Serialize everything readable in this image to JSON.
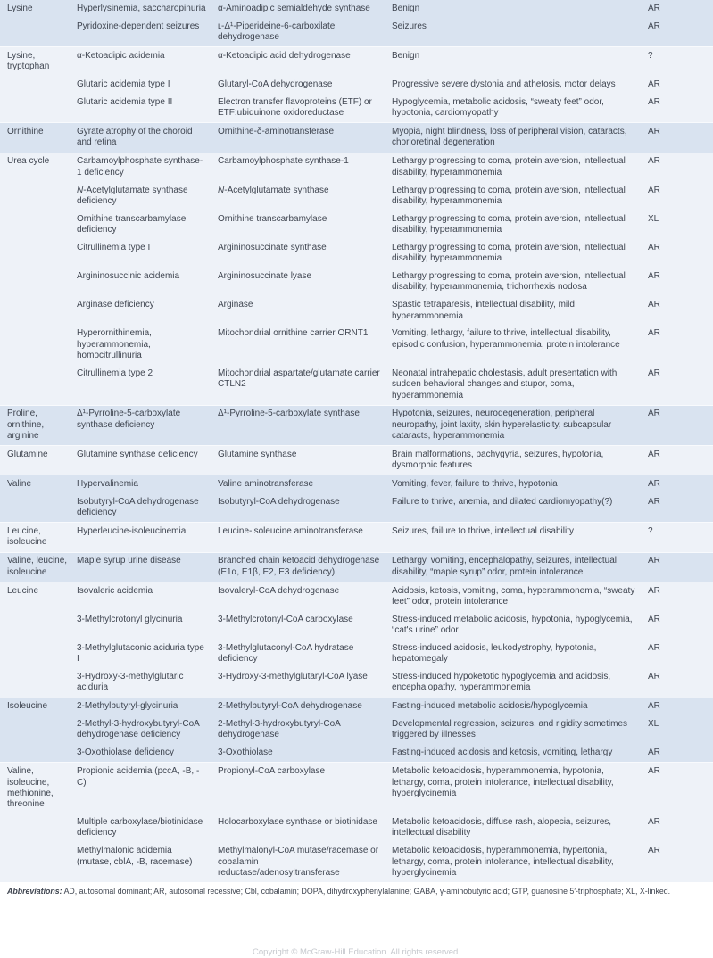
{
  "colors": {
    "stripe_blue": "#d9e3f0",
    "stripe_light": "#eef2f8",
    "text": "#3f4550",
    "page_background": "#ffffff"
  },
  "groups": [
    {
      "category": "Lysine",
      "rows": [
        {
          "disorder": "Hyperlysinemia, saccharopinuria",
          "enzyme": "α-Aminoadipic semialdehyde synthase",
          "clinical": "Benign",
          "inheritance": "AR"
        },
        {
          "disorder": "Pyridoxine-dependent seizures",
          "enzyme": "ʟ-Δ¹-Piperideine-6-carboxilate dehydrogenase",
          "clinical": "Seizures",
          "inheritance": "AR"
        }
      ]
    },
    {
      "category": "Lysine, tryptophan",
      "rows": [
        {
          "disorder": "α-Ketoadipic acidemia",
          "enzyme": "α-Ketoadipic acid dehydrogenase",
          "clinical": "Benign",
          "inheritance": "?"
        },
        {
          "disorder": "Glutaric acidemia type I",
          "enzyme": "Glutaryl-CoA dehydrogenase",
          "clinical": "Progressive severe dystonia and athetosis, motor delays",
          "inheritance": "AR"
        },
        {
          "disorder": "Glutaric acidemia type II",
          "enzyme": "Electron transfer flavoproteins (ETF) or ETF:ubiquinone oxidoreductase",
          "clinical": "Hypoglycemia, metabolic acidosis, “sweaty feet” odor, hypotonia, cardiomyopathy",
          "inheritance": "AR"
        }
      ]
    },
    {
      "category": "Ornithine",
      "rows": [
        {
          "disorder": "Gyrate atrophy of the choroid and retina",
          "enzyme": "Ornithine-δ-aminotransferase",
          "clinical": "Myopia, night blindness, loss of peripheral vision, cataracts, chorioretinal degeneration",
          "inheritance": "AR"
        }
      ]
    },
    {
      "category": "Urea cycle",
      "rows": [
        {
          "disorder": "Carbamoylphosphate synthase-1 deficiency",
          "enzyme": "Carbamoylphosphate synthase-1",
          "clinical": "Lethargy progressing to coma, protein aversion, intellectual disability, hyperammonemia",
          "inheritance": "AR"
        },
        {
          "disorder_html": "<i>N</i>-Acetylglutamate synthase deficiency",
          "enzyme_html": "<i>N</i>-Acetylglutamate synthase",
          "disorder": "N-Acetylglutamate synthase deficiency",
          "enzyme": "N-Acetylglutamate synthase",
          "clinical": "Lethargy progressing to coma, protein aversion, intellectual disability, hyperammonemia",
          "inheritance": "AR"
        },
        {
          "disorder": "Ornithine transcarbamylase deficiency",
          "enzyme": "Ornithine transcarbamylase",
          "clinical": "Lethargy progressing to coma, protein aversion, intellectual disability, hyperammonemia",
          "inheritance": "XL"
        },
        {
          "disorder": "Citrullinemia type I",
          "enzyme": "Argininosuccinate synthase",
          "clinical": "Lethargy progressing to coma, protein aversion, intellectual disability, hyperammonemia",
          "inheritance": "AR"
        },
        {
          "disorder": "Argininosuccinic acidemia",
          "enzyme": "Argininosuccinate lyase",
          "clinical": "Lethargy progressing to coma, protein aversion, intellectual disability, hyperammonemia, trichorrhexis nodosa",
          "inheritance": "AR"
        },
        {
          "disorder": "Arginase deficiency",
          "enzyme": "Arginase",
          "clinical": "Spastic tetraparesis, intellectual disability, mild hyperammonemia",
          "inheritance": "AR"
        },
        {
          "disorder": "Hyperornithinemia, hyperammonemia, homocitrullinuria",
          "enzyme": "Mitochondrial ornithine carrier ORNT1",
          "clinical": "Vomiting, lethargy, failure to thrive, intellectual disability, episodic confusion, hyperammonemia, protein intolerance",
          "inheritance": "AR"
        },
        {
          "disorder": "Citrullinemia type 2",
          "enzyme": "Mitochondrial aspartate/glutamate carrier CTLN2",
          "clinical": "Neonatal intrahepatic cholestasis, adult presentation with sudden behavioral changes and stupor, coma, hyperammonemia",
          "inheritance": "AR"
        }
      ]
    },
    {
      "category": "Proline, ornithine, arginine",
      "rows": [
        {
          "disorder": "Δ¹-Pyrroline-5-carboxylate synthase deficiency",
          "enzyme": "Δ¹-Pyrroline-5-carboxylate synthase",
          "clinical": "Hypotonia, seizures, neurodegeneration, peripheral neuropathy, joint laxity, skin hyperelasticity, subcapsular cataracts, hyperammonemia",
          "inheritance": "AR"
        }
      ]
    },
    {
      "category": "Glutamine",
      "rows": [
        {
          "disorder": "Glutamine synthase deficiency",
          "enzyme": "Glutamine synthase",
          "clinical": "Brain malformations, pachygyria, seizures, hypotonia, dysmorphic features",
          "inheritance": "AR"
        }
      ]
    },
    {
      "category": "Valine",
      "rows": [
        {
          "disorder": "Hypervalinemia",
          "enzyme": "Valine aminotransferase",
          "clinical": "Vomiting, fever, failure to thrive, hypotonia",
          "inheritance": "AR"
        },
        {
          "disorder": "Isobutyryl-CoA dehydrogenase deficiency",
          "enzyme": "Isobutyryl-CoA dehydrogenase",
          "clinical": "Failure to thrive, anemia, and dilated cardiomyopathy(?)",
          "inheritance": "AR"
        }
      ]
    },
    {
      "category": "Leucine, isoleucine",
      "rows": [
        {
          "disorder": "Hyperleucine-isoleucinemia",
          "enzyme": "Leucine-isoleucine aminotransferase",
          "clinical": "Seizures, failure to thrive, intellectual disability",
          "inheritance": "?"
        }
      ]
    },
    {
      "category": "Valine, leucine, isoleucine",
      "rows": [
        {
          "disorder": "Maple syrup urine disease",
          "enzyme": "Branched chain ketoacid dehydrogenase (E1α, E1β, E2, E3 deficiency)",
          "clinical": "Lethargy, vomiting, encephalopathy, seizures, intellectual disability, “maple syrup” odor, protein intolerance",
          "inheritance": "AR"
        }
      ]
    },
    {
      "category": "Leucine",
      "rows": [
        {
          "disorder": "Isovaleric acidemia",
          "enzyme": "Isovaleryl-CoA dehydrogenase",
          "clinical": "Acidosis, ketosis, vomiting, coma, hyperammonemia, “sweaty feet” odor, protein intolerance",
          "inheritance": "AR"
        },
        {
          "disorder": "3-Methylcrotonyl glycinuria",
          "enzyme": "3-Methylcrotonyl-CoA carboxylase",
          "clinical": "Stress-induced metabolic acidosis, hypotonia, hypoglycemia, “cat's urine” odor",
          "inheritance": "AR"
        },
        {
          "disorder": "3-Methylglutaconic aciduria type I",
          "enzyme": "3-Methylglutaconyl-CoA hydratase deficiency",
          "clinical": "Stress-induced acidosis, leukodystrophy, hypotonia, hepatomegaly",
          "inheritance": "AR"
        },
        {
          "disorder": "3-Hydroxy-3-methylglutaric aciduria",
          "enzyme": "3-Hydroxy-3-methylglutaryl-CoA lyase",
          "clinical": "Stress-induced hypoketotic hypoglycemia and acidosis, encephalopathy, hyperammonemia",
          "inheritance": "AR"
        }
      ]
    },
    {
      "category": "Isoleucine",
      "rows": [
        {
          "disorder": "2-Methylbutyryl-glycinuria",
          "enzyme": "2-Methylbutyryl-CoA dehydrogenase",
          "clinical": "Fasting-induced metabolic acidosis/hypoglycemia",
          "inheritance": "AR"
        },
        {
          "disorder": "2-Methyl-3-hydroxybutyryl-CoA dehydrogenase deficiency",
          "enzyme": "2-Methyl-3-hydroxybutyryl-CoA dehydrogenase",
          "clinical": "Developmental regression, seizures, and rigidity sometimes triggered by illnesses",
          "inheritance": "XL"
        },
        {
          "disorder": "3-Oxothiolase deficiency",
          "enzyme": "3-Oxothiolase",
          "clinical": "Fasting-induced acidosis and ketosis, vomiting, lethargy",
          "inheritance": "AR"
        }
      ]
    },
    {
      "category": "Valine, isoleucine, methionine, threonine",
      "rows": [
        {
          "disorder": "Propionic acidemia (pccA, -B, -C)",
          "enzyme": "Propionyl-CoA carboxylase",
          "clinical": "Metabolic ketoacidosis, hyperammonemia, hypotonia, lethargy, coma, protein intolerance, intellectual disability, hyperglycinemia",
          "inheritance": "AR"
        },
        {
          "disorder": "Multiple carboxylase/biotinidase deficiency",
          "enzyme": "Holocarboxylase synthase or biotinidase",
          "clinical": "Metabolic ketoacidosis, diffuse rash, alopecia, seizures, intellectual disability",
          "inheritance": "AR"
        },
        {
          "disorder": "Methylmalonic acidemia (mutase, cblA, -B, racemase)",
          "enzyme": "Methylmalonyl-CoA mutase/racemase or cobalamin reductase/adenosyltransferase",
          "clinical": "Metabolic ketoacidosis, hyperammonemia, hypertonia, lethargy, coma, protein intolerance, intellectual disability, hyperglycinemia",
          "inheritance": "AR"
        }
      ]
    }
  ],
  "footer": {
    "abbreviations_label": "Abbreviations:",
    "abbreviations_text": "AD, autosomal dominant; AR, autosomal recessive; Cbl, cobalamin; DOPA, dihydroxyphenylalanine; GABA, γ-aminobutyric acid; GTP, guanosine 5′-triphosphate; XL, X-linked.",
    "copyright": "Copyright © McGraw-Hill Education. All rights reserved."
  }
}
